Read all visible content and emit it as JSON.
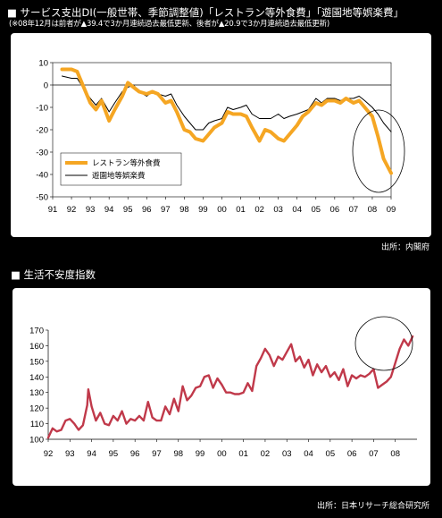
{
  "header": {
    "title": "■ サービス支出DI(一般世帯、季節調整値)「レストラン等外食費」「遊園地等娯楽費」",
    "note": "(※08年12月は前者が▲39.4で3か月連続過去最低更新、後者が▲20.9で3か月連続過去最低更新)",
    "source": "出所：内閣府"
  },
  "header2": {
    "title": "■ 生活不安度指数",
    "source": "出所：日本リサーチ総合研究所"
  },
  "chart_data": [
    {
      "type": "line",
      "title": "サービス支出DI(一般世帯、季節調整値)",
      "ylim": [
        -50,
        10
      ],
      "yticks": [
        10,
        0,
        -10,
        -20,
        -30,
        -40,
        -50
      ],
      "xlim": [
        1991,
        2009
      ],
      "xticks": [
        "91",
        "92",
        "93",
        "94",
        "95",
        "96",
        "97",
        "98",
        "99",
        "00",
        "01",
        "02",
        "03",
        "04",
        "05",
        "06",
        "07",
        "08",
        "09"
      ],
      "legend_position": "bottom-left",
      "series": [
        {
          "name": "レストラン等外食費",
          "color": "#F5A623",
          "points": [
            [
              1991.5,
              7
            ],
            [
              1992,
              7
            ],
            [
              1992.3,
              6
            ],
            [
              1992.6,
              0
            ],
            [
              1993,
              -8
            ],
            [
              1993.3,
              -11
            ],
            [
              1993.6,
              -7
            ],
            [
              1994,
              -16
            ],
            [
              1994.3,
              -11
            ],
            [
              1994.7,
              -5
            ],
            [
              1995,
              1
            ],
            [
              1995.3,
              -1
            ],
            [
              1995.6,
              -3
            ],
            [
              1996,
              -4
            ],
            [
              1996.3,
              -3
            ],
            [
              1996.6,
              -4
            ],
            [
              1997,
              -8
            ],
            [
              1997.3,
              -7
            ],
            [
              1997.6,
              -12
            ],
            [
              1998,
              -20
            ],
            [
              1998.3,
              -21
            ],
            [
              1998.6,
              -24
            ],
            [
              1999,
              -25
            ],
            [
              1999.3,
              -22
            ],
            [
              1999.6,
              -19
            ],
            [
              2000,
              -17
            ],
            [
              2000.3,
              -12
            ],
            [
              2000.6,
              -13
            ],
            [
              2001,
              -13
            ],
            [
              2001.3,
              -14
            ],
            [
              2001.6,
              -19
            ],
            [
              2002,
              -25
            ],
            [
              2002.3,
              -20
            ],
            [
              2002.6,
              -21
            ],
            [
              2003,
              -24
            ],
            [
              2003.3,
              -25
            ],
            [
              2003.6,
              -22
            ],
            [
              2004,
              -18
            ],
            [
              2004.3,
              -14
            ],
            [
              2004.6,
              -12
            ],
            [
              2005,
              -8
            ],
            [
              2005.3,
              -9
            ],
            [
              2005.6,
              -7
            ],
            [
              2006,
              -7
            ],
            [
              2006.3,
              -8
            ],
            [
              2006.6,
              -6
            ],
            [
              2007,
              -8
            ],
            [
              2007.3,
              -7
            ],
            [
              2007.6,
              -10
            ],
            [
              2008,
              -14
            ],
            [
              2008.3,
              -23
            ],
            [
              2008.6,
              -33
            ],
            [
              2009,
              -39.4
            ]
          ]
        },
        {
          "name": "遊園地等娯楽費",
          "color": "#000000",
          "points": [
            [
              1991.5,
              4
            ],
            [
              1992,
              3
            ],
            [
              1992.3,
              3
            ],
            [
              1992.6,
              -1
            ],
            [
              1993,
              -6
            ],
            [
              1993.3,
              -9
            ],
            [
              1993.6,
              -6
            ],
            [
              1994,
              -12
            ],
            [
              1994.3,
              -8
            ],
            [
              1994.7,
              -3
            ],
            [
              1995,
              -1
            ],
            [
              1995.3,
              0
            ],
            [
              1995.6,
              -3
            ],
            [
              1996,
              -5
            ],
            [
              1996.3,
              -3
            ],
            [
              1996.6,
              -4
            ],
            [
              1997,
              -5
            ],
            [
              1997.3,
              -4
            ],
            [
              1997.6,
              -9
            ],
            [
              1998,
              -14
            ],
            [
              1998.3,
              -17
            ],
            [
              1998.6,
              -20
            ],
            [
              1999,
              -20
            ],
            [
              1999.3,
              -17
            ],
            [
              1999.6,
              -16
            ],
            [
              2000,
              -15
            ],
            [
              2000.3,
              -10
            ],
            [
              2000.6,
              -11
            ],
            [
              2001,
              -10
            ],
            [
              2001.3,
              -9
            ],
            [
              2001.6,
              -13
            ],
            [
              2002,
              -15
            ],
            [
              2002.3,
              -15
            ],
            [
              2002.6,
              -15
            ],
            [
              2003,
              -13
            ],
            [
              2003.3,
              -15
            ],
            [
              2003.6,
              -14
            ],
            [
              2004,
              -13
            ],
            [
              2004.3,
              -12
            ],
            [
              2004.6,
              -11
            ],
            [
              2005,
              -6
            ],
            [
              2005.3,
              -8
            ],
            [
              2005.6,
              -6
            ],
            [
              2006,
              -6
            ],
            [
              2006.3,
              -7
            ],
            [
              2006.6,
              -6
            ],
            [
              2007,
              -6
            ],
            [
              2007.3,
              -5
            ],
            [
              2007.6,
              -7
            ],
            [
              2008,
              -10
            ],
            [
              2008.3,
              -13
            ],
            [
              2008.6,
              -17
            ],
            [
              2009,
              -20.9
            ]
          ]
        }
      ]
    },
    {
      "type": "line",
      "title": "生活不安度指数",
      "ylim": [
        100,
        170
      ],
      "yticks": [
        170,
        160,
        150,
        140,
        130,
        120,
        110,
        100
      ],
      "xlim": [
        1992,
        2009
      ],
      "xticks": [
        "92",
        "93",
        "94",
        "95",
        "96",
        "97",
        "98",
        "99",
        "00",
        "01",
        "02",
        "03",
        "04",
        "05",
        "06",
        "07",
        "08"
      ],
      "series": [
        {
          "name": "",
          "color": "#C0394A",
          "points": [
            [
              1992,
              101
            ],
            [
              1992.2,
              107
            ],
            [
              1992.4,
              105
            ],
            [
              1992.6,
              106
            ],
            [
              1992.8,
              112
            ],
            [
              1993,
              113
            ],
            [
              1993.2,
              110
            ],
            [
              1993.4,
              106
            ],
            [
              1993.6,
              109
            ],
            [
              1993.8,
              122
            ],
            [
              1993.85,
              132
            ],
            [
              1994,
              121
            ],
            [
              1994.2,
              112
            ],
            [
              1994.4,
              117
            ],
            [
              1994.6,
              110
            ],
            [
              1994.8,
              109
            ],
            [
              1995,
              115
            ],
            [
              1995.2,
              112
            ],
            [
              1995.4,
              118
            ],
            [
              1995.6,
              110
            ],
            [
              1995.8,
              113
            ],
            [
              1996,
              112
            ],
            [
              1996.2,
              115
            ],
            [
              1996.4,
              112
            ],
            [
              1996.6,
              124
            ],
            [
              1996.8,
              114
            ],
            [
              1997,
              112
            ],
            [
              1997.2,
              112
            ],
            [
              1997.4,
              121
            ],
            [
              1997.6,
              116
            ],
            [
              1997.8,
              126
            ],
            [
              1998,
              118
            ],
            [
              1998.2,
              134
            ],
            [
              1998.4,
              125
            ],
            [
              1998.6,
              128
            ],
            [
              1998.8,
              133
            ],
            [
              1999,
              134
            ],
            [
              1999.2,
              140
            ],
            [
              1999.4,
              141
            ],
            [
              1999.6,
              133
            ],
            [
              1999.8,
              139
            ],
            [
              2000,
              135
            ],
            [
              2000.2,
              130
            ],
            [
              2000.4,
              130
            ],
            [
              2000.6,
              129
            ],
            [
              2000.8,
              129
            ],
            [
              2001,
              130
            ],
            [
              2001.2,
              136
            ],
            [
              2001.4,
              131
            ],
            [
              2001.6,
              147
            ],
            [
              2001.8,
              152
            ],
            [
              2002,
              158
            ],
            [
              2002.2,
              154
            ],
            [
              2002.4,
              147
            ],
            [
              2002.6,
              153
            ],
            [
              2002.8,
              151
            ],
            [
              2003,
              156
            ],
            [
              2003.2,
              161
            ],
            [
              2003.4,
              150
            ],
            [
              2003.6,
              153
            ],
            [
              2003.8,
              146
            ],
            [
              2004,
              151
            ],
            [
              2004.2,
              141
            ],
            [
              2004.4,
              148
            ],
            [
              2004.6,
              143
            ],
            [
              2004.8,
              147
            ],
            [
              2005,
              140
            ],
            [
              2005.2,
              143
            ],
            [
              2005.4,
              138
            ],
            [
              2005.6,
              145
            ],
            [
              2005.8,
              134
            ],
            [
              2006,
              141
            ],
            [
              2006.2,
              139
            ],
            [
              2006.4,
              141
            ],
            [
              2006.6,
              140
            ],
            [
              2006.8,
              142
            ],
            [
              2007,
              145
            ],
            [
              2007.2,
              133
            ],
            [
              2007.4,
              135
            ],
            [
              2007.6,
              137
            ],
            [
              2007.8,
              140
            ],
            [
              2008,
              149
            ],
            [
              2008.2,
              158
            ],
            [
              2008.4,
              164
            ],
            [
              2008.6,
              160
            ],
            [
              2008.8,
              166
            ]
          ]
        }
      ]
    }
  ]
}
